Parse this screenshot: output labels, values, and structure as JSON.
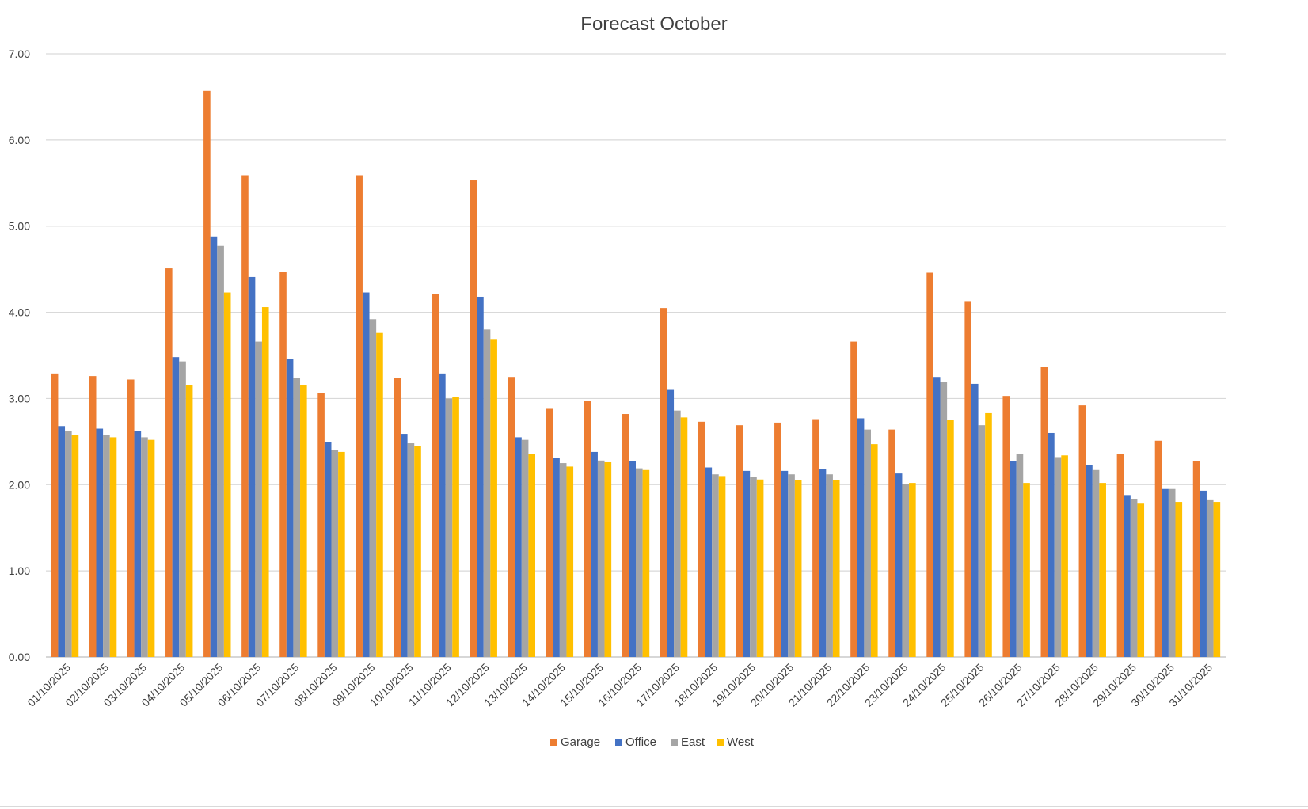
{
  "chart_data": {
    "type": "bar",
    "title": "Forecast October",
    "xlabel": "",
    "ylabel": "",
    "ylim": [
      0,
      7
    ],
    "yticks": [
      "0.00",
      "1.00",
      "2.00",
      "3.00",
      "4.00",
      "5.00",
      "6.00",
      "7.00"
    ],
    "grid": true,
    "legend_position": "bottom",
    "categories": [
      "01/10/2025",
      "02/10/2025",
      "03/10/2025",
      "04/10/2025",
      "05/10/2025",
      "06/10/2025",
      "07/10/2025",
      "08/10/2025",
      "09/10/2025",
      "10/10/2025",
      "11/10/2025",
      "12/10/2025",
      "13/10/2025",
      "14/10/2025",
      "15/10/2025",
      "16/10/2025",
      "17/10/2025",
      "18/10/2025",
      "19/10/2025",
      "20/10/2025",
      "21/10/2025",
      "22/10/2025",
      "23/10/2025",
      "24/10/2025",
      "25/10/2025",
      "26/10/2025",
      "27/10/2025",
      "28/10/2025",
      "29/10/2025",
      "30/10/2025",
      "31/10/2025"
    ],
    "series": [
      {
        "name": "Garage",
        "color": "#ed7d31",
        "values": [
          3.29,
          3.26,
          3.22,
          4.51,
          6.57,
          5.59,
          4.47,
          3.06,
          5.59,
          3.24,
          4.21,
          5.53,
          3.25,
          2.88,
          2.97,
          2.82,
          4.05,
          2.73,
          2.69,
          2.72,
          2.76,
          3.66,
          2.64,
          4.46,
          4.13,
          3.03,
          3.37,
          2.92,
          2.36,
          2.51,
          2.27
        ]
      },
      {
        "name": "Office",
        "color": "#4472c4",
        "values": [
          2.68,
          2.65,
          2.62,
          3.48,
          4.88,
          4.41,
          3.46,
          2.49,
          4.23,
          2.59,
          3.29,
          4.18,
          2.55,
          2.31,
          2.38,
          2.27,
          3.1,
          2.2,
          2.16,
          2.16,
          2.18,
          2.77,
          2.13,
          3.25,
          3.17,
          2.27,
          2.6,
          2.23,
          1.88,
          1.95,
          1.93
        ]
      },
      {
        "name": "East",
        "color": "#a5a5a5",
        "values": [
          2.62,
          2.58,
          2.55,
          3.43,
          4.77,
          3.66,
          3.24,
          2.4,
          3.92,
          2.48,
          3.0,
          3.8,
          2.52,
          2.25,
          2.28,
          2.19,
          2.86,
          2.12,
          2.09,
          2.12,
          2.12,
          2.64,
          2.01,
          3.19,
          2.69,
          2.36,
          2.32,
          2.17,
          1.83,
          1.95,
          1.82
        ]
      },
      {
        "name": "West",
        "color": "#ffc000",
        "values": [
          2.58,
          2.55,
          2.52,
          3.16,
          4.23,
          4.06,
          3.16,
          2.38,
          3.76,
          2.45,
          3.02,
          3.69,
          2.36,
          2.21,
          2.26,
          2.17,
          2.78,
          2.1,
          2.06,
          2.05,
          2.05,
          2.47,
          2.02,
          2.75,
          2.83,
          2.02,
          2.34,
          2.02,
          1.78,
          1.8,
          1.8
        ]
      }
    ]
  }
}
